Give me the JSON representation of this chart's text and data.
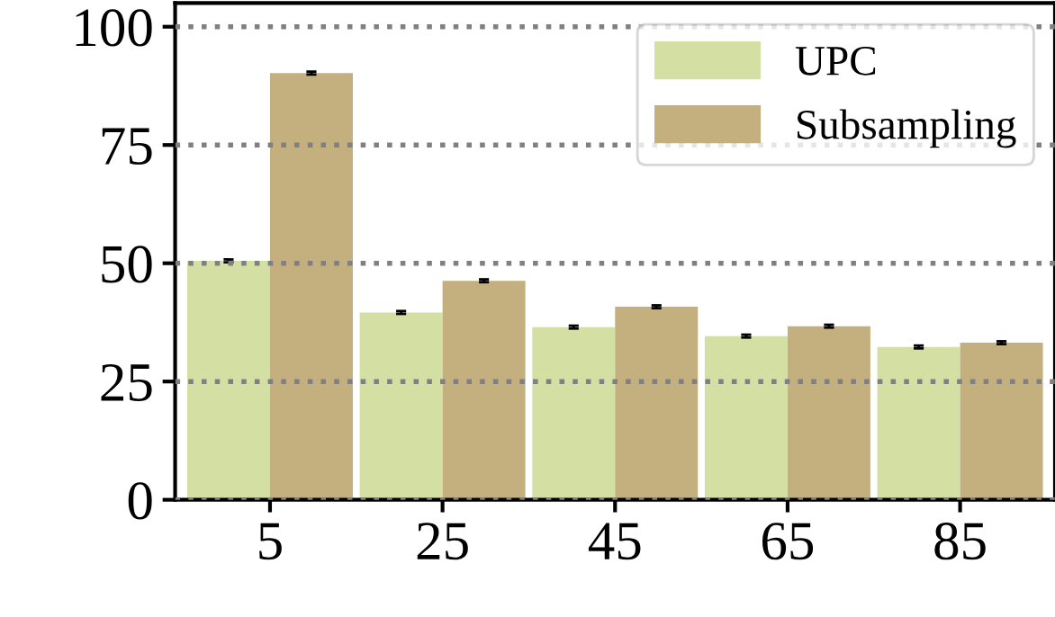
{
  "chart_data": {
    "type": "bar",
    "categories": [
      "5",
      "25",
      "45",
      "65",
      "85"
    ],
    "series": [
      {
        "name": "UPC",
        "color": "#d4e0a3",
        "values": [
          50.5,
          39.6,
          36.5,
          34.6,
          32.3
        ],
        "errors": [
          0.3,
          0.3,
          0.3,
          0.3,
          0.3
        ]
      },
      {
        "name": "Subsampling",
        "color": "#c4b07f",
        "values": [
          90.2,
          46.3,
          40.8,
          36.7,
          33.2
        ],
        "errors": [
          0.3,
          0.3,
          0.3,
          0.3,
          0.3
        ]
      }
    ],
    "ylim": [
      0,
      105
    ],
    "yticks": [
      0,
      25,
      50,
      75,
      100
    ],
    "grid": "y",
    "legend": "top right"
  }
}
